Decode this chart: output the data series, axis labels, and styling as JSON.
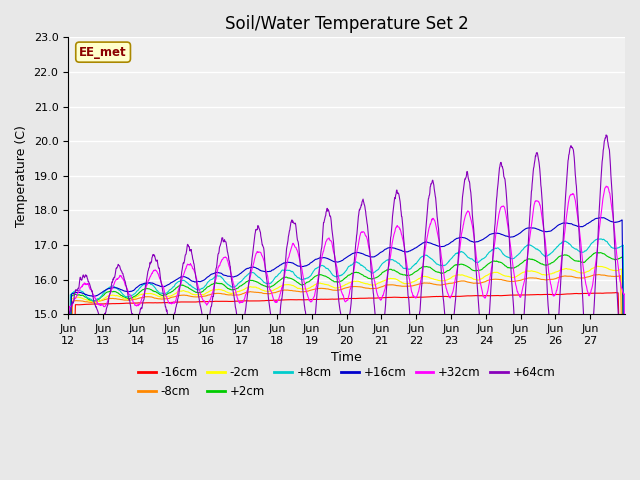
{
  "title": "Soil/Water Temperature Set 2",
  "ylabel": "Temperature (C)",
  "xlabel": "Time",
  "annotation": "EE_met",
  "ylim": [
    15.0,
    23.0
  ],
  "yticks": [
    15.0,
    16.0,
    17.0,
    18.0,
    19.0,
    20.0,
    21.0,
    22.0,
    23.0
  ],
  "xtick_labels": [
    "Jun\n12",
    "Jun\n13",
    "Jun\n14",
    "Jun\n15",
    "Jun\n16",
    "Jun\n17",
    "Jun\n18",
    "Jun\n19",
    "Jun\n20",
    "Jun\n21",
    "Jun\n22",
    "Jun\n23",
    "Jun\n24",
    "Jun\n25",
    "Jun\n26",
    "Jun\n27"
  ],
  "series": [
    {
      "label": "-16cm",
      "color": "#ff0000"
    },
    {
      "label": "-8cm",
      "color": "#ff8800"
    },
    {
      "label": "-2cm",
      "color": "#ffff00"
    },
    {
      "label": "+2cm",
      "color": "#00cc00"
    },
    {
      "label": "+8cm",
      "color": "#00cccc"
    },
    {
      "label": "+16cm",
      "color": "#0000cc"
    },
    {
      "label": "+32cm",
      "color": "#ff00ff"
    },
    {
      "label": "+64cm",
      "color": "#8800bb"
    }
  ],
  "background_color": "#e8e8e8",
  "plot_bg_color": "#f0f0f0",
  "grid_color": "#ffffff",
  "title_fontsize": 12,
  "tick_fontsize": 8,
  "label_fontsize": 9
}
